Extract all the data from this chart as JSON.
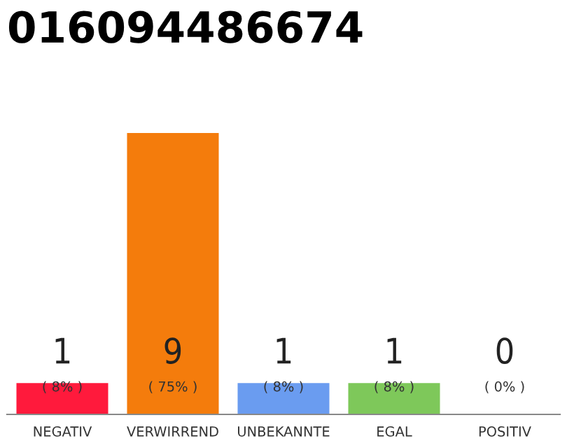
{
  "chart_data": {
    "type": "bar",
    "title": "016094486674",
    "categories": [
      "NEGATIV",
      "VERWIRREND",
      "UNBEKANNTE",
      "EGAL",
      "POSITIV"
    ],
    "values": [
      1,
      9,
      1,
      1,
      0
    ],
    "colors": [
      "#ff1a3c",
      "#f47c0c",
      "#6a9cf0",
      "#7ec85a",
      "#cccccc"
    ],
    "data_labels": true,
    "annotations": [
      "( 8% )",
      "( 75% )",
      "( 8% )",
      "( 8% )",
      "( 0% )"
    ],
    "grid": false,
    "legend": false
  }
}
